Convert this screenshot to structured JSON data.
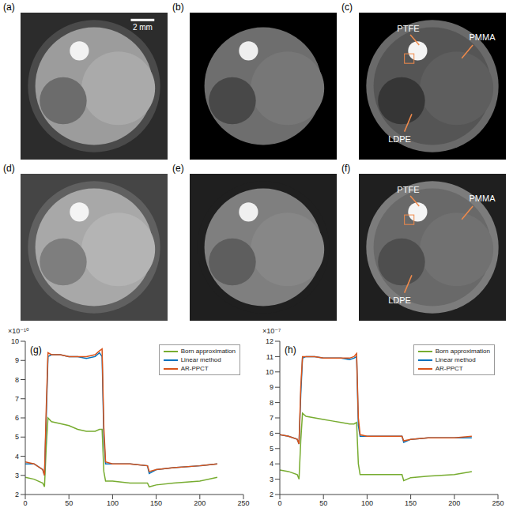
{
  "image_panels": [
    {
      "label": "(a)",
      "scale_bar": "2 mm"
    },
    {
      "label": "(b)"
    },
    {
      "label": "(c)",
      "annotations": [
        "PTFE",
        "PMMA",
        "LDPE"
      ]
    },
    {
      "label": "(d)"
    },
    {
      "label": "(e)"
    },
    {
      "label": "(f)",
      "annotations": [
        "PTFE",
        "PMMA",
        "LDPE"
      ]
    }
  ],
  "chart_data": [
    {
      "type": "line",
      "panel_label": "(g)",
      "y_exponent_label": "×10⁻¹⁰",
      "x": [
        0,
        10,
        20,
        22,
        24,
        26,
        30,
        40,
        50,
        60,
        70,
        80,
        85,
        88,
        90,
        92,
        100,
        120,
        140,
        142,
        150,
        170,
        200,
        220
      ],
      "series": [
        {
          "name": "Born approximation",
          "color": "#77ac30",
          "values": [
            2.9,
            2.8,
            2.6,
            2.4,
            4.5,
            6.0,
            5.8,
            5.7,
            5.6,
            5.4,
            5.3,
            5.3,
            5.4,
            5.4,
            3.2,
            2.7,
            2.7,
            2.6,
            2.6,
            2.4,
            2.5,
            2.6,
            2.7,
            2.9
          ]
        },
        {
          "name": "Linear method",
          "color": "#0072bd",
          "values": [
            3.6,
            3.6,
            3.3,
            3.0,
            6.0,
            9.2,
            9.3,
            9.3,
            9.2,
            9.2,
            9.1,
            9.2,
            9.4,
            9.2,
            5.0,
            3.6,
            3.6,
            3.6,
            3.5,
            3.1,
            3.3,
            3.4,
            3.5,
            3.6
          ]
        },
        {
          "name": "AR-PPCT",
          "color": "#d95319",
          "values": [
            3.7,
            3.6,
            3.3,
            3.0,
            6.5,
            9.4,
            9.3,
            9.3,
            9.2,
            9.2,
            9.2,
            9.3,
            9.5,
            9.6,
            5.5,
            3.7,
            3.6,
            3.6,
            3.5,
            3.2,
            3.3,
            3.4,
            3.5,
            3.6
          ]
        }
      ],
      "xlim": [
        0,
        250
      ],
      "xticks": [
        0,
        50,
        100,
        150,
        200,
        250
      ],
      "ylim": [
        2,
        10
      ],
      "yticks": [
        2,
        3,
        4,
        5,
        6,
        7,
        8,
        9,
        10
      ],
      "legend": "top-right"
    },
    {
      "type": "line",
      "panel_label": "(h)",
      "y_exponent_label": "×10⁻⁷",
      "x": [
        0,
        10,
        20,
        22,
        24,
        26,
        30,
        40,
        50,
        60,
        70,
        80,
        85,
        88,
        90,
        92,
        100,
        120,
        140,
        142,
        150,
        170,
        200,
        220
      ],
      "series": [
        {
          "name": "Born approximation",
          "color": "#77ac30",
          "values": [
            3.6,
            3.5,
            3.3,
            3.0,
            5.5,
            7.3,
            7.1,
            7.0,
            6.9,
            6.8,
            6.7,
            6.6,
            6.6,
            6.7,
            4.0,
            3.3,
            3.3,
            3.3,
            3.3,
            2.9,
            3.1,
            3.2,
            3.3,
            3.5
          ]
        },
        {
          "name": "Linear method",
          "color": "#0072bd",
          "values": [
            5.9,
            5.8,
            5.6,
            5.3,
            8.5,
            10.9,
            11.0,
            11.0,
            10.9,
            10.9,
            10.9,
            10.8,
            10.9,
            11.0,
            6.5,
            5.8,
            5.8,
            5.8,
            5.8,
            5.4,
            5.6,
            5.7,
            5.7,
            5.7
          ]
        },
        {
          "name": "AR-PPCT",
          "color": "#d95319",
          "values": [
            5.9,
            5.8,
            5.6,
            5.3,
            9.0,
            11.0,
            11.0,
            11.0,
            10.9,
            10.9,
            10.9,
            10.9,
            11.0,
            11.2,
            7.0,
            5.9,
            5.8,
            5.8,
            5.8,
            5.5,
            5.6,
            5.7,
            5.7,
            5.8
          ]
        }
      ],
      "xlim": [
        0,
        250
      ],
      "xticks": [
        0,
        50,
        100,
        150,
        200,
        250
      ],
      "ylim": [
        2,
        12
      ],
      "yticks": [
        2,
        3,
        4,
        5,
        6,
        7,
        8,
        9,
        10,
        11,
        12
      ],
      "legend": "top-right"
    }
  ]
}
